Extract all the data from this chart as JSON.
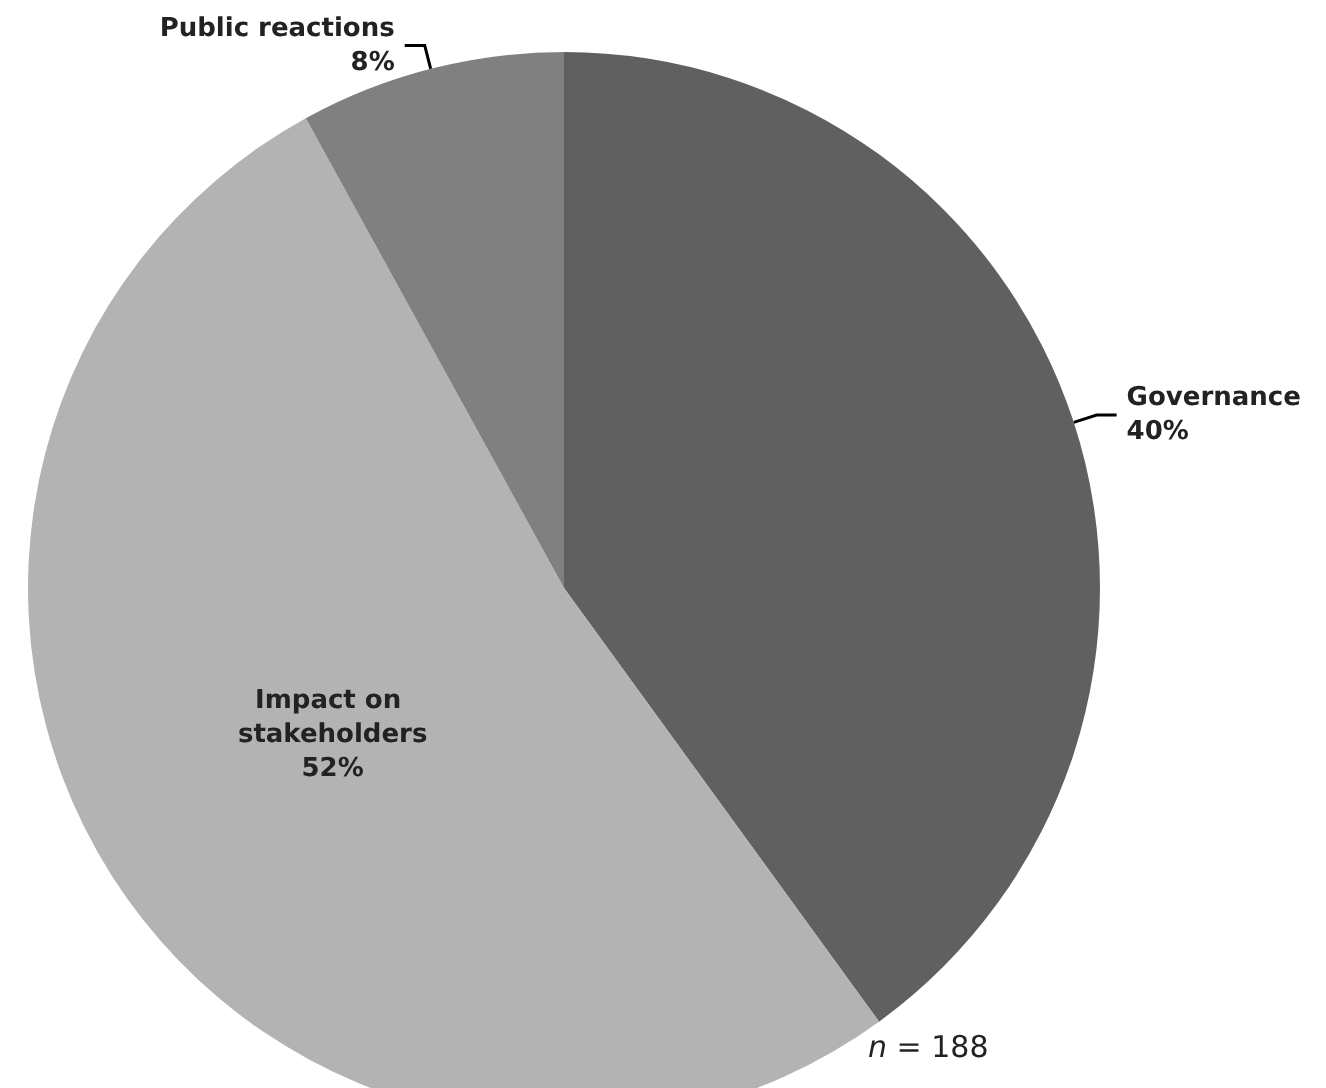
{
  "chart_data": {
    "type": "pie",
    "categories": [
      "Governance",
      "Impact on stakeholders",
      "Public reactions"
    ],
    "values": [
      40,
      52,
      8
    ],
    "value_labels": [
      "40%",
      "52%",
      "8%"
    ],
    "colors": [
      "#606060",
      "#b3b3b3",
      "#808080"
    ],
    "annotations": [
      "n = 188"
    ]
  }
}
